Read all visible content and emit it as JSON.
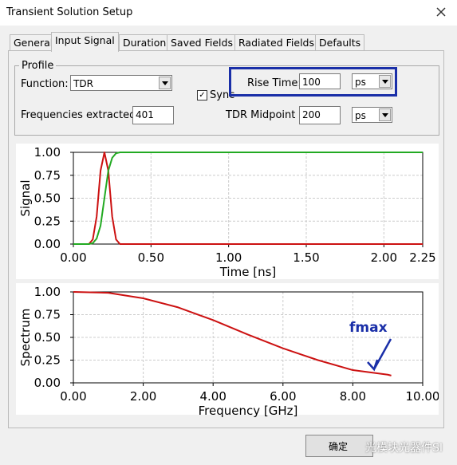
{
  "window": {
    "title": "Transient Solution Setup"
  },
  "tabs": [
    "General",
    "Input Signal",
    "Duration",
    "Saved Fields",
    "Radiated Fields",
    "Defaults"
  ],
  "profile": {
    "legend": "Profile",
    "function_label": "Function:",
    "function_value": "TDR",
    "sync_label": "Sync",
    "rise_time_label": "Rise Time:",
    "rise_time_value": "100",
    "rise_time_unit": "ps",
    "freq_label": "Frequencies extracted:",
    "freq_value": "401",
    "midpoint_label": "TDR Midpoint",
    "midpoint_value": "200",
    "midpoint_unit": "ps"
  },
  "chart_data": [
    {
      "type": "line",
      "xlabel": "Time [ns]",
      "ylabel": "Signal",
      "x": [
        0,
        0.05,
        0.1,
        0.125,
        0.15,
        0.175,
        0.2,
        0.225,
        0.25,
        0.275,
        0.3,
        0.35,
        0.5,
        1.0,
        1.5,
        2.0,
        2.25
      ],
      "series": [
        {
          "color": "#cc1111",
          "values": [
            0,
            0,
            0,
            0.05,
            0.3,
            0.8,
            1.0,
            0.8,
            0.3,
            0.05,
            0,
            0,
            0,
            0,
            0,
            0,
            0
          ]
        },
        {
          "color": "#22aa22",
          "values": [
            0,
            0,
            0,
            0.01,
            0.06,
            0.2,
            0.5,
            0.8,
            0.94,
            0.99,
            1,
            1,
            1,
            1,
            1,
            1,
            1
          ]
        }
      ],
      "xlim": [
        0,
        2.25
      ],
      "ylim": [
        0,
        1
      ],
      "xticks": [
        {
          "value": 0,
          "label": "0.00"
        },
        {
          "value": 0.5,
          "label": "0.50"
        },
        {
          "value": 1,
          "label": "1.00"
        },
        {
          "value": 1.5,
          "label": "1.50"
        },
        {
          "value": 2,
          "label": "2.00"
        },
        2.25
      ],
      "yticks": [
        {
          "value": 0,
          "label": "0.00"
        },
        {
          "value": 0.25,
          "label": "0.25"
        },
        {
          "value": 0.5,
          "label": "0.50"
        },
        {
          "value": 0.75,
          "label": "0.75"
        },
        {
          "value": 1,
          "label": "1.00"
        }
      ],
      "grid": true
    },
    {
      "type": "line",
      "xlabel": "Frequency [GHz]",
      "ylabel": "Spectrum",
      "annotation": "fmax",
      "x": [
        0,
        1,
        2,
        3,
        4,
        5,
        6,
        7,
        8,
        9,
        9.1
      ],
      "series": [
        {
          "color": "#cc1111",
          "values": [
            1,
            0.99,
            0.93,
            0.83,
            0.69,
            0.53,
            0.38,
            0.25,
            0.14,
            0.09,
            0.08
          ]
        }
      ],
      "xlim": [
        0,
        10
      ],
      "ylim": [
        0,
        1
      ],
      "xticks": [
        {
          "value": 0,
          "label": "0.00"
        },
        {
          "value": 2,
          "label": "2.00"
        },
        {
          "value": 4,
          "label": "4.00"
        },
        {
          "value": 6,
          "label": "6.00"
        },
        {
          "value": 8,
          "label": "8.00"
        },
        {
          "value": 10,
          "label": "10.00"
        }
      ],
      "yticks": [
        {
          "value": 0,
          "label": "0.00"
        },
        {
          "value": 0.25,
          "label": "0.25"
        },
        {
          "value": 0.5,
          "label": "0.50"
        },
        {
          "value": 0.75,
          "label": "0.75"
        },
        {
          "value": 1,
          "label": "1.00"
        }
      ],
      "grid": true
    }
  ],
  "footer": {
    "ok": "确定",
    "watermark": "光模块光器件SI"
  }
}
